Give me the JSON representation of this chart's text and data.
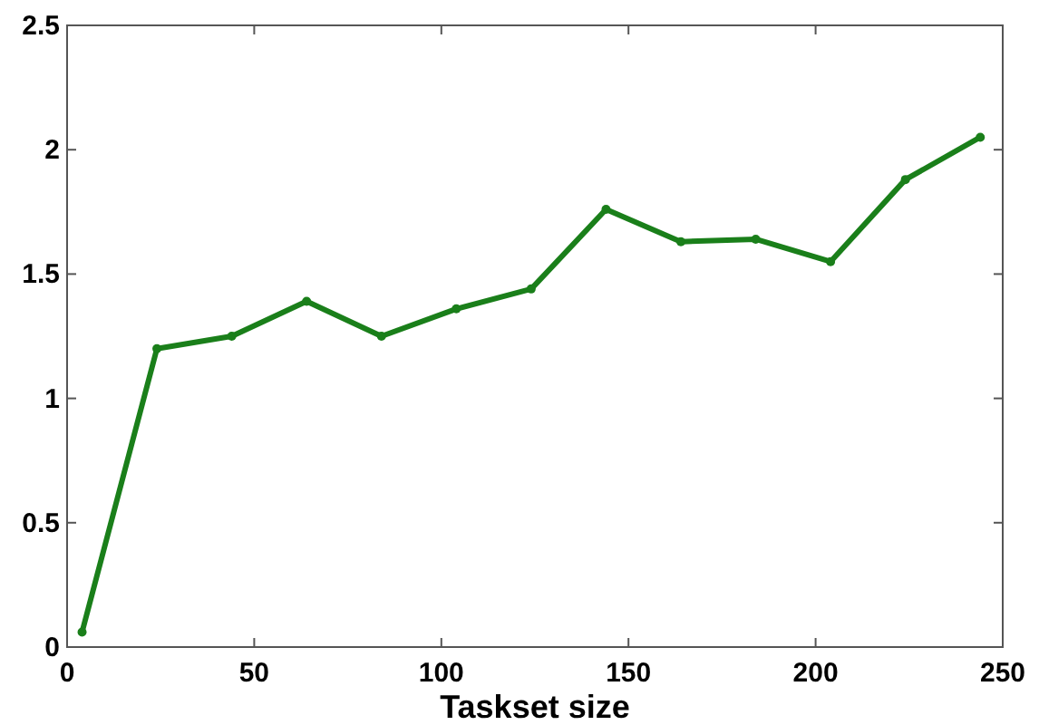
{
  "chart_data": {
    "type": "line",
    "xlabel": "Taskset size",
    "x": [
      4,
      24,
      44,
      64,
      84,
      104,
      124,
      144,
      164,
      184,
      204,
      224,
      244
    ],
    "series": [
      {
        "color": "#1a7f1a",
        "values": [
          0.06,
          1.2,
          1.25,
          1.39,
          1.25,
          1.36,
          1.44,
          1.76,
          1.63,
          1.64,
          1.55,
          1.88,
          2.05
        ]
      }
    ],
    "xlim": [
      0,
      250
    ],
    "xticks": [
      0,
      50,
      100,
      150,
      200,
      250
    ],
    "ylim": [
      0,
      2.5
    ],
    "yticks": [
      0,
      0.5,
      1,
      1.5,
      2,
      2.5
    ],
    "grid": false,
    "marker": "circle",
    "line_style": "solid"
  }
}
